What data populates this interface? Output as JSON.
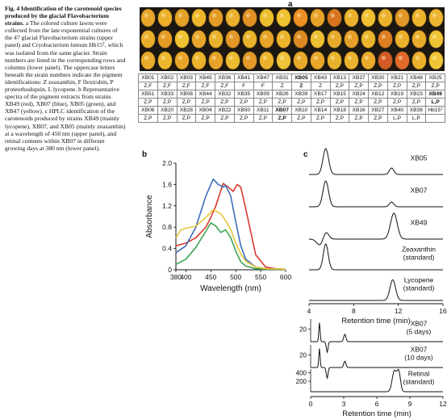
{
  "caption": {
    "heading": "Fig. 4 Identification of the carotenoid species produced by the glacial Flavobacterium strains.",
    "body": "a The colored culture lawns were collected from the late exponential cultures of the 47 glacial Flavobacterium strains (upper panel) and Cryobacterium luteum Hb15ᵀ, which was isolated from the same glacier. Strain numbers are listed in the corresponding rows and columns (lower panel). The uppercase letters beneath the strain numbers indicate the pigment identifications: Z zeaxanthin, F flexirubin, P proteorhodopsin, L lycopene. b Representative spectra of the pigment extracts from strains XB49 (red), XB07 (blue), XB05 (green), and XB47 (yellow). c HPLC identification of the carotenoids produced by strains XB49 (mainly lycopene), XB07, and XB05 (mainly zeaxanthin) at a wavelength of 450 nm (upper panel), and retinal contents within XB07 in different growing days at 380 nm (lower panel)."
  },
  "panel_labels": {
    "a": "a",
    "b": "b",
    "c": "c"
  },
  "colors": {
    "plate_bg": "#1c1710",
    "XB49": "#d93a2f",
    "XB07": "#3b6fb6",
    "XB05": "#3aa650",
    "XB47": "#e7c43a",
    "tube_row1": [
      "#e7a52a",
      "#ecb02b",
      "#e4a027",
      "#eeb82c",
      "#e49a26",
      "#eab02c",
      "#e09025",
      "#ecbe2e",
      "#f0c230",
      "#ee8f26",
      "#e7a32a",
      "#d9751f",
      "#eab22c",
      "#f0c031",
      "#e9b12c",
      "#e19628",
      "#ebb42d",
      "#edb630"
    ],
    "tube_row2": [
      "#ebae2c",
      "#e69b27",
      "#eec232",
      "#e8a62a",
      "#e9b22c",
      "#e29728",
      "#eab12c",
      "#e6a429",
      "#ecb42d",
      "#dd8a24",
      "#eec033",
      "#e8a92b",
      "#e5a029",
      "#ebb42d",
      "#dd7e22",
      "#eab02c",
      "#e9ad2c",
      "#eec334"
    ],
    "tube_row3": [
      "#e8ab2b",
      "#edb82e",
      "#e8a62a",
      "#ebb22c",
      "#e6a229",
      "#ecbc31",
      "#e39a28",
      "#ebb22d",
      "#efc33a",
      "#e9aa2b",
      "#e9a82a",
      "#eab32c",
      "#ebb22d",
      "#e9ac2b",
      "#d25a24",
      "#e2692a",
      "#ebb12c",
      "#f0c537"
    ]
  },
  "strain_table": [
    [
      {
        "name": "XB01",
        "pig": "Z,F"
      },
      {
        "name": "XB02",
        "pig": "Z,F"
      },
      {
        "name": "XB03",
        "pig": "Z,F"
      },
      {
        "name": "XB45",
        "pig": "Z,F"
      },
      {
        "name": "XB36",
        "pig": "Z,F"
      },
      {
        "name": "XB41",
        "pig": "F"
      },
      {
        "name": "XB47",
        "pig": "F"
      },
      {
        "name": "XB31",
        "pig": "Z"
      },
      {
        "name": "XB05",
        "pig": "Z",
        "bold": true
      },
      {
        "name": "XB43",
        "pig": "Z"
      },
      {
        "name": "XB13",
        "pig": "Z,P"
      },
      {
        "name": "XB37",
        "pig": "Z,P"
      },
      {
        "name": "XB30",
        "pig": "Z,P"
      },
      {
        "name": "XB21",
        "pig": "Z,P"
      },
      {
        "name": "XB48",
        "pig": "Z,P"
      },
      {
        "name": "XB25",
        "pig": "Z,P"
      }
    ],
    [
      {
        "name": "XB51",
        "pig": "Z,P"
      },
      {
        "name": "XB33",
        "pig": "Z,P"
      },
      {
        "name": "XB08",
        "pig": "Z,P"
      },
      {
        "name": "XB44",
        "pig": "Z,P"
      },
      {
        "name": "XB32",
        "pig": "Z,P"
      },
      {
        "name": "XB35",
        "pig": "Z,P"
      },
      {
        "name": "XB09",
        "pig": "Z,P"
      },
      {
        "name": "XB26",
        "pig": "Z,P"
      },
      {
        "name": "XB39",
        "pig": "Z,P"
      },
      {
        "name": "XB17",
        "pig": "Z,P"
      },
      {
        "name": "XB15",
        "pig": "Z,P"
      },
      {
        "name": "XB24",
        "pig": "Z,P"
      },
      {
        "name": "XB12",
        "pig": "Z,P"
      },
      {
        "name": "XB19",
        "pig": "Z,P"
      },
      {
        "name": "XB23",
        "pig": "Z,P"
      },
      {
        "name": "XB49",
        "pig": "L,P",
        "bold": true
      }
    ],
    [
      {
        "name": "XB06",
        "pig": "Z,P"
      },
      {
        "name": "XB20",
        "pig": "Z,P"
      },
      {
        "name": "XB28",
        "pig": "Z,P"
      },
      {
        "name": "XB04",
        "pig": "Z,P"
      },
      {
        "name": "XB22",
        "pig": "Z,P"
      },
      {
        "name": "XB50",
        "pig": "Z,P"
      },
      {
        "name": "XB11",
        "pig": "Z,P"
      },
      {
        "name": "XB07",
        "pig": "Z,P",
        "bold": true
      },
      {
        "name": "XB10",
        "pig": "Z,P"
      },
      {
        "name": "XB14",
        "pig": "Z,P"
      },
      {
        "name": "XB18",
        "pig": "Z,P"
      },
      {
        "name": "XB16",
        "pig": "Z,P"
      },
      {
        "name": "XB27",
        "pig": "Z,P"
      },
      {
        "name": "XB40",
        "pig": "L,P"
      },
      {
        "name": "XB38",
        "pig": "L,P"
      },
      {
        "name": "Hb15ᵀ",
        "pig": ""
      }
    ]
  ],
  "chart_data": [
    {
      "type": "line",
      "panel": "b",
      "xlabel": "Wavelength (nm)",
      "ylabel": "Absorbance",
      "xlim": [
        380,
        600
      ],
      "ylim": [
        0,
        2.0
      ],
      "xticks": [
        "380",
        "400",
        "450",
        "500",
        "550",
        "600"
      ],
      "xtick_values": [
        380,
        400,
        450,
        500,
        550,
        600
      ],
      "yticks": [
        "0",
        "0.4",
        "0.8",
        "1.2",
        "1.6",
        "2.0"
      ],
      "ytick_values": [
        0,
        0.4,
        0.8,
        1.2,
        1.6,
        2.0
      ],
      "series": [
        {
          "color_key": "XB49",
          "x": [
            380,
            400,
            420,
            440,
            450,
            460,
            470,
            475,
            485,
            495,
            503,
            510,
            520,
            540,
            560,
            580,
            600
          ],
          "y": [
            0.45,
            0.5,
            0.6,
            0.8,
            0.98,
            1.2,
            1.48,
            1.62,
            1.55,
            1.47,
            1.6,
            1.55,
            1.15,
            0.28,
            0.05,
            0.02,
            0.01
          ]
        },
        {
          "color_key": "XB07",
          "x": [
            380,
            400,
            420,
            440,
            450,
            455,
            465,
            475,
            480,
            490,
            500,
            510,
            520,
            540,
            560,
            600
          ],
          "y": [
            0.32,
            0.45,
            0.8,
            1.38,
            1.6,
            1.7,
            1.6,
            1.55,
            1.58,
            1.38,
            0.9,
            0.45,
            0.2,
            0.05,
            0.02,
            0.01
          ]
        },
        {
          "color_key": "XB05",
          "x": [
            380,
            400,
            420,
            440,
            450,
            460,
            470,
            480,
            490,
            500,
            510,
            520,
            540,
            560,
            600
          ],
          "y": [
            0.1,
            0.2,
            0.42,
            0.72,
            0.88,
            0.82,
            0.7,
            0.75,
            0.6,
            0.35,
            0.15,
            0.07,
            0.02,
            0.01,
            0.01
          ]
        },
        {
          "color_key": "XB47",
          "x": [
            380,
            390,
            400,
            420,
            440,
            455,
            470,
            480,
            490,
            500,
            510,
            520,
            540,
            560,
            600
          ],
          "y": [
            0.6,
            0.75,
            0.78,
            0.82,
            0.98,
            1.13,
            1.05,
            0.92,
            0.75,
            0.5,
            0.3,
            0.16,
            0.05,
            0.02,
            0.01
          ]
        }
      ]
    },
    {
      "type": "line",
      "panel": "c-upper",
      "xlabel": "Retention time (min)",
      "xlim": [
        4,
        16
      ],
      "xticks": [
        "4",
        "8",
        "12",
        "16"
      ],
      "xtick_values": [
        4,
        8,
        12,
        16
      ],
      "series": [
        {
          "name": "XB05",
          "peaks": [
            [
              5.5,
              1.0,
              0.25
            ],
            [
              11.4,
              0.25,
              0.2
            ]
          ]
        },
        {
          "name": "XB07",
          "peaks": [
            [
              5.5,
              1.0,
              0.25
            ],
            [
              11.4,
              0.18,
              0.2
            ]
          ]
        },
        {
          "name": "XB49",
          "peaks": [
            [
              5.0,
              -0.25,
              0.3
            ],
            [
              5.5,
              0.3,
              0.25
            ],
            [
              11.6,
              1.0,
              0.3
            ]
          ]
        },
        {
          "name": "Zeaxanthin\n(standard)",
          "peaks": [
            [
              5.5,
              1.0,
              0.22
            ]
          ]
        },
        {
          "name": "Lycopene\n(standard)",
          "peaks": [
            [
              11.5,
              0.8,
              0.25
            ]
          ]
        }
      ]
    },
    {
      "type": "line",
      "panel": "c-lower",
      "xlabel": "Retention time (min)",
      "xlim": [
        0,
        12
      ],
      "xticks": [
        "0",
        "3",
        "6",
        "9",
        "12"
      ],
      "xtick_values": [
        0,
        3,
        6,
        9,
        12
      ],
      "series": [
        {
          "name": "XB07\n(5 days)",
          "ytick": "20",
          "peaks": [
            [
              0.8,
              0.9,
              0.06
            ],
            [
              1.5,
              -0.5,
              0.08
            ],
            [
              3.1,
              0.35,
              0.1
            ]
          ]
        },
        {
          "name": "XB07\n(10 days)",
          "ytick": "20",
          "peaks": [
            [
              0.8,
              0.9,
              0.06
            ],
            [
              1.5,
              -0.5,
              0.08
            ],
            [
              3.1,
              0.3,
              0.1
            ]
          ]
        },
        {
          "name": "Retinal\n(standard)",
          "yticks": [
            "200",
            "400"
          ],
          "peaks": [
            [
              7.6,
              1.0,
              0.2
            ],
            [
              8.0,
              0.9,
              0.15
            ]
          ]
        }
      ]
    }
  ]
}
